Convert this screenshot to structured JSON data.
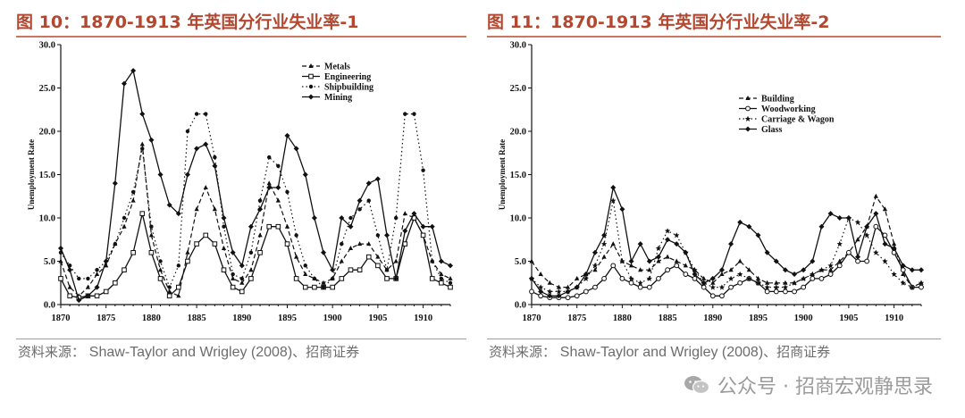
{
  "figures": [
    {
      "title": "图 10：1870-1913 年英国分行业失业率-1",
      "source_label": "资料来源：",
      "source_text": "Shaw-Taylor and Wrigley (2008)",
      "source_suffix": "、招商证券"
    },
    {
      "title": "图 11：1870-1913 年英国分行业失业率-2",
      "source_label": "资料来源：",
      "source_text": "Shaw-Taylor and Wrigley (2008)",
      "source_suffix": "、招商证券"
    }
  ],
  "watermark": {
    "text": "公众号 · 招商宏观静思录",
    "icon": "wechat-icon"
  },
  "chart_data": [
    {
      "type": "line",
      "title": "",
      "xlabel": "",
      "ylabel": "Unemployment Rate",
      "xlim": [
        1870,
        1913
      ],
      "ylim": [
        0,
        30
      ],
      "x_ticks": [
        1870,
        1875,
        1880,
        1885,
        1890,
        1895,
        1900,
        1905,
        1910
      ],
      "y_ticks": [
        "0.0",
        "5.0",
        "10.0",
        "15.0",
        "20.0",
        "25.0",
        "30.0"
      ],
      "legend_position": "top-right",
      "x": [
        1870,
        1871,
        1872,
        1873,
        1874,
        1875,
        1876,
        1877,
        1878,
        1879,
        1880,
        1881,
        1882,
        1883,
        1884,
        1885,
        1886,
        1887,
        1888,
        1889,
        1890,
        1891,
        1892,
        1893,
        1894,
        1895,
        1896,
        1897,
        1898,
        1899,
        1900,
        1901,
        1902,
        1903,
        1904,
        1905,
        1906,
        1907,
        1908,
        1909,
        1910,
        1911,
        1912,
        1913
      ],
      "series": [
        {
          "name": "Metals",
          "style": "dash-tri",
          "values": [
            5.0,
            2.0,
            1.0,
            2.0,
            3.5,
            4.5,
            7.0,
            9.0,
            12.0,
            18.5,
            8.0,
            4.0,
            1.5,
            1.0,
            6.0,
            11.0,
            13.5,
            11.0,
            6.5,
            3.0,
            2.5,
            4.0,
            8.0,
            14.0,
            12.0,
            9.0,
            5.5,
            3.5,
            3.0,
            2.5,
            3.0,
            5.0,
            6.5,
            7.0,
            7.0,
            5.5,
            4.0,
            5.0,
            10.5,
            10.0,
            8.0,
            5.0,
            3.5,
            3.0
          ]
        },
        {
          "name": "Engineering",
          "style": "solid-square",
          "values": [
            3.0,
            1.0,
            0.8,
            1.0,
            1.0,
            1.5,
            2.5,
            4.0,
            6.0,
            10.5,
            6.0,
            3.0,
            1.0,
            2.0,
            5.0,
            7.0,
            8.0,
            7.0,
            4.0,
            2.0,
            1.5,
            3.0,
            6.0,
            9.0,
            9.0,
            7.0,
            3.0,
            2.0,
            2.0,
            2.0,
            2.0,
            3.0,
            4.0,
            4.0,
            5.5,
            4.5,
            3.0,
            3.0,
            7.0,
            10.0,
            8.0,
            3.0,
            2.5,
            2.0
          ]
        },
        {
          "name": "Shipbuilding",
          "style": "dot-dot",
          "values": [
            6.0,
            4.5,
            3.0,
            3.0,
            4.0,
            5.0,
            7.0,
            10.0,
            13.0,
            18.0,
            9.0,
            5.0,
            2.0,
            4.5,
            20.0,
            22.0,
            22.0,
            17.0,
            9.0,
            3.5,
            3.0,
            6.0,
            12.0,
            17.0,
            16.0,
            13.0,
            8.0,
            4.5,
            3.0,
            2.0,
            3.0,
            7.0,
            10.0,
            11.0,
            12.0,
            8.0,
            4.0,
            10.0,
            22.0,
            22.0,
            15.5,
            5.0,
            3.0,
            2.5
          ]
        },
        {
          "name": "Mining",
          "style": "solid-diamond",
          "values": [
            6.5,
            4.0,
            0.5,
            1.0,
            2.0,
            5.0,
            14.0,
            25.5,
            27.0,
            22.0,
            19.0,
            15.0,
            11.5,
            10.5,
            15.0,
            18.0,
            18.5,
            16.0,
            10.0,
            6.0,
            4.5,
            9.0,
            11.0,
            13.5,
            13.5,
            19.5,
            18.0,
            15.0,
            10.0,
            6.0,
            4.0,
            10.0,
            9.0,
            12.0,
            14.0,
            14.5,
            8.0,
            3.0,
            8.5,
            10.5,
            9.0,
            9.0,
            5.0,
            4.5
          ]
        }
      ]
    },
    {
      "type": "line",
      "title": "",
      "xlabel": "",
      "ylabel": "Unemployment Rate",
      "xlim": [
        1870,
        1913
      ],
      "ylim": [
        0,
        30
      ],
      "x_ticks": [
        1870,
        1875,
        1880,
        1885,
        1890,
        1895,
        1900,
        1905,
        1910
      ],
      "y_ticks": [
        "0.0",
        "5.0",
        "10.0",
        "15.0",
        "20.0",
        "25.0",
        "30.0"
      ],
      "legend_position": "top-left",
      "x": [
        1870,
        1871,
        1872,
        1873,
        1874,
        1875,
        1876,
        1877,
        1878,
        1879,
        1880,
        1881,
        1882,
        1883,
        1884,
        1885,
        1886,
        1887,
        1888,
        1889,
        1890,
        1891,
        1892,
        1893,
        1894,
        1895,
        1896,
        1897,
        1898,
        1899,
        1900,
        1901,
        1902,
        1903,
        1904,
        1905,
        1906,
        1907,
        1908,
        1909,
        1910,
        1911,
        1912,
        1913
      ],
      "series": [
        {
          "name": "Building",
          "style": "dash-tri",
          "values": [
            5.0,
            3.5,
            2.5,
            2.0,
            2.0,
            3.0,
            3.5,
            4.0,
            5.5,
            7.0,
            5.0,
            4.5,
            4.0,
            4.0,
            5.0,
            5.5,
            5.0,
            4.5,
            4.0,
            3.0,
            2.5,
            3.5,
            4.0,
            5.0,
            4.0,
            3.0,
            2.5,
            2.5,
            2.5,
            2.5,
            3.0,
            3.5,
            4.0,
            4.0,
            5.0,
            6.0,
            7.5,
            9.0,
            12.5,
            11.0,
            7.0,
            3.5,
            2.0,
            2.5
          ]
        },
        {
          "name": "Woodworking",
          "style": "solid-circle",
          "values": [
            1.5,
            1.0,
            0.8,
            0.8,
            0.8,
            1.0,
            1.5,
            2.0,
            3.0,
            4.5,
            3.0,
            2.5,
            2.0,
            2.0,
            3.0,
            4.0,
            4.5,
            3.5,
            3.0,
            2.0,
            1.0,
            1.0,
            2.0,
            2.5,
            3.0,
            2.5,
            1.5,
            1.5,
            1.5,
            1.5,
            2.0,
            3.0,
            3.0,
            3.5,
            4.5,
            6.0,
            5.0,
            5.0,
            9.0,
            8.0,
            6.0,
            4.0,
            2.0,
            2.0
          ]
        },
        {
          "name": "Carriage & Wagon",
          "style": "dot-star",
          "values": [
            3.0,
            2.0,
            1.5,
            1.5,
            1.5,
            2.0,
            3.0,
            4.5,
            7.0,
            12.0,
            5.0,
            3.0,
            2.5,
            3.0,
            6.5,
            8.5,
            8.0,
            6.0,
            4.0,
            2.5,
            2.0,
            2.0,
            3.0,
            3.5,
            3.0,
            2.5,
            2.0,
            2.0,
            2.0,
            2.5,
            3.0,
            3.5,
            4.0,
            4.5,
            7.0,
            10.0,
            9.5,
            8.0,
            6.0,
            5.0,
            3.5,
            2.5,
            2.0,
            2.5
          ]
        },
        {
          "name": "Glass",
          "style": "solid-diamond",
          "values": [
            3.0,
            1.5,
            1.0,
            1.0,
            1.5,
            2.0,
            3.5,
            6.0,
            8.0,
            13.5,
            11.0,
            5.0,
            7.0,
            5.0,
            5.5,
            7.5,
            7.0,
            6.0,
            3.5,
            2.5,
            3.0,
            4.0,
            7.0,
            9.5,
            9.0,
            8.0,
            6.0,
            5.0,
            4.0,
            3.5,
            4.0,
            5.0,
            9.0,
            10.5,
            10.0,
            10.0,
            5.5,
            9.0,
            10.5,
            7.0,
            6.5,
            4.5,
            4.0,
            4.0
          ]
        }
      ]
    }
  ]
}
